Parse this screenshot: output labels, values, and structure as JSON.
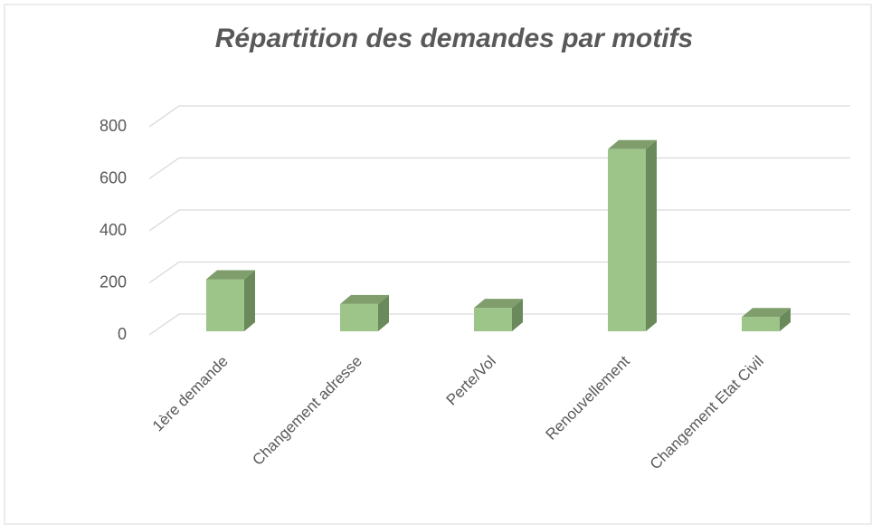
{
  "chart_data": {
    "type": "bar3d",
    "title": "Répartition des demandes par motifs",
    "categories": [
      "1ère demande",
      "Changement adresse",
      "Perte/Vol",
      "Renouvellement",
      "Changement Etat Civil"
    ],
    "values": [
      200,
      105,
      90,
      700,
      55
    ],
    "color": "#9dc489",
    "ylim": [
      0,
      800
    ],
    "yticks": [
      0,
      200,
      400,
      600,
      800
    ],
    "grid": true
  }
}
